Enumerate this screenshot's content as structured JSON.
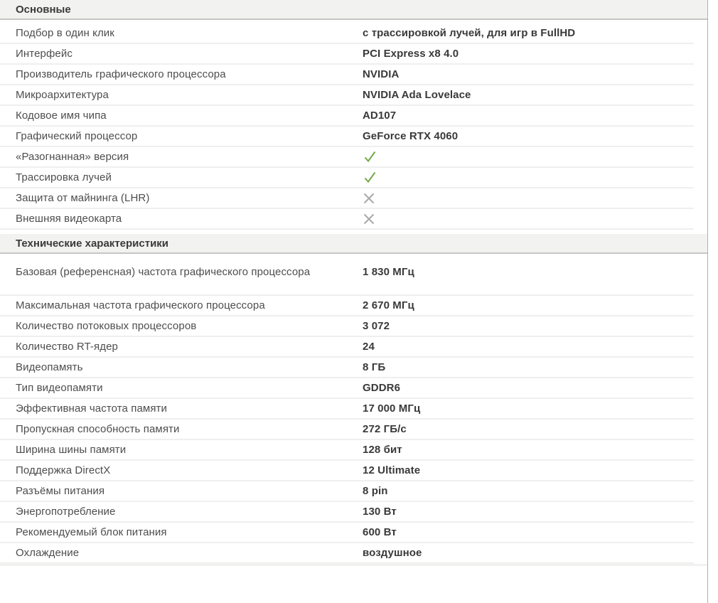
{
  "colors": {
    "check_green": "#72a945",
    "cross_gray": "#a9a9a9",
    "header_bg": "#f2f2f0",
    "header_border": "#c6c6c6",
    "row_border": "#efefef",
    "container_border": "#b0b0b0"
  },
  "icons": {
    "check": "check-icon",
    "cross": "cross-icon"
  },
  "sections": [
    {
      "title": "Основные",
      "rows": [
        {
          "label": "Подбор в один клик",
          "value": "с трассировкой лучей, для игр в FullHD",
          "type": "text"
        },
        {
          "label": "Интерфейс",
          "value": "PCI Express x8 4.0",
          "type": "text"
        },
        {
          "label": "Производитель графического процессора",
          "value": "NVIDIA",
          "type": "text"
        },
        {
          "label": "Микроархитектура",
          "value": "NVIDIA Ada Lovelace",
          "type": "text"
        },
        {
          "label": "Кодовое имя чипа",
          "value": "AD107",
          "type": "text"
        },
        {
          "label": "Графический процессор",
          "value": "GeForce RTX 4060",
          "type": "text"
        },
        {
          "label": "«Разогнанная» версия",
          "value": "",
          "type": "check"
        },
        {
          "label": "Трассировка лучей",
          "value": "",
          "type": "check"
        },
        {
          "label": "Защита от майнинга (LHR)",
          "value": "",
          "type": "cross"
        },
        {
          "label": "Внешняя видеокарта",
          "value": "",
          "type": "cross"
        }
      ]
    },
    {
      "title": "Технические характеристики",
      "rows": [
        {
          "label": "Базовая (референсная) частота графического процессора",
          "value": "1 830 МГц",
          "type": "text",
          "tall": true
        },
        {
          "label": "Максимальная частота графического процессора",
          "value": "2 670 МГц",
          "type": "text"
        },
        {
          "label": "Количество потоковых процессоров",
          "value": "3 072",
          "type": "text"
        },
        {
          "label": "Количество RT-ядер",
          "value": "24",
          "type": "text"
        },
        {
          "label": "Видеопамять",
          "value": "8 ГБ",
          "type": "text"
        },
        {
          "label": "Тип видеопамяти",
          "value": "GDDR6",
          "type": "text"
        },
        {
          "label": "Эффективная частота памяти",
          "value": "17 000 МГц",
          "type": "text"
        },
        {
          "label": "Пропускная способность памяти",
          "value": "272 ГБ/с",
          "type": "text"
        },
        {
          "label": "Ширина шины памяти",
          "value": "128 бит",
          "type": "text"
        },
        {
          "label": "Поддержка DirectX",
          "value": "12 Ultimate",
          "type": "text"
        },
        {
          "label": "Разъёмы питания",
          "value": "8 pin",
          "type": "text"
        },
        {
          "label": "Энергопотребление",
          "value": "130 Вт",
          "type": "text"
        },
        {
          "label": "Рекомендуемый блок питания",
          "value": "600 Вт",
          "type": "text"
        },
        {
          "label": "Охлаждение",
          "value": "воздушное",
          "type": "text"
        }
      ]
    }
  ]
}
